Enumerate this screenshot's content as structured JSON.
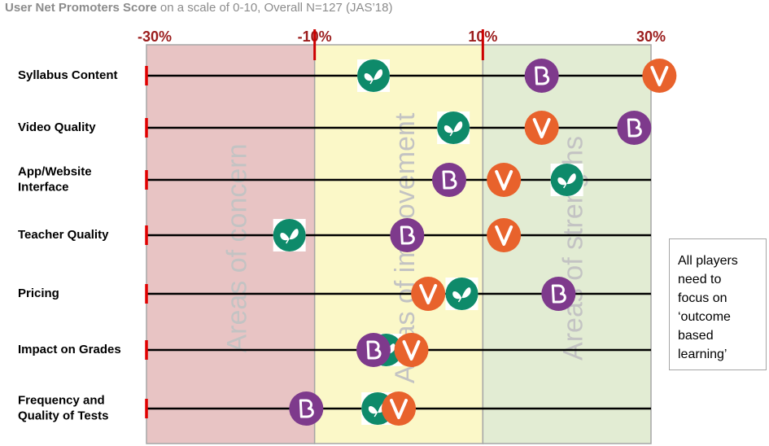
{
  "title_bold": "User Net Promoters Score",
  "title_rest": " on a scale of 0-10, Overall N=127 (JAS’18)",
  "zones": [
    {
      "label": "Areas of concern",
      "from": -30,
      "to": -10,
      "color": "#e8c4c4"
    },
    {
      "label": "Areas of improvement",
      "from": -10,
      "to": 10,
      "color": "#fbf8c8"
    },
    {
      "label": "Areas of strengths",
      "from": 10,
      "to": 30,
      "color": "#e2ecd3"
    }
  ],
  "callout": {
    "lines": [
      "All players",
      "need to",
      "focus on",
      "‘outcome",
      "based",
      "learning’"
    ]
  },
  "chart_data": {
    "type": "scatter",
    "xlim": [
      -30,
      30
    ],
    "x_ticks": [
      -30,
      -10,
      10,
      30
    ],
    "x_tick_labels": [
      "-30%",
      "-10%",
      "10%",
      "30%"
    ],
    "categories": [
      "Syllabus Content",
      "Video Quality",
      "App/Website Interface",
      "Teacher Quality",
      "Pricing",
      "Impact on Grades",
      "Frequency and Quality of Tests"
    ],
    "series": [
      {
        "icon": "butterfly-logo-icon",
        "color": "#0e8a6a",
        "values": [
          -3,
          6.5,
          20,
          -13,
          7.5,
          -1.5,
          -2.5
        ]
      },
      {
        "icon": "b-logo-icon",
        "color": "#7e3a8c",
        "values": [
          17,
          28,
          6,
          1,
          19,
          -3,
          -11
        ]
      },
      {
        "icon": "v-logo-icon",
        "color": "#e8622c",
        "values": [
          31,
          17,
          12.5,
          12.5,
          3.5,
          1.5,
          0
        ]
      }
    ]
  }
}
